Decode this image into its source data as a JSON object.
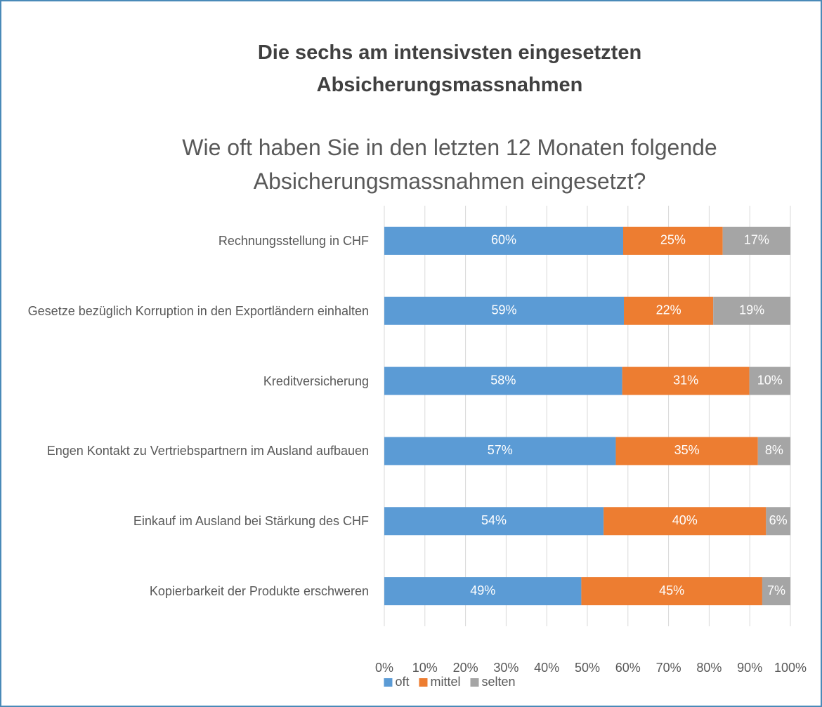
{
  "chart_data": {
    "type": "bar",
    "orientation": "horizontal",
    "stack": "percent",
    "title": "Die sechs am intensivsten eingesetzten Absicherungsmassnahmen",
    "subtitle": "Wie oft haben Sie in den letzten 12 Monaten folgende Absicherungsmassnahmen eingesetzt?",
    "categories": [
      "Rechnungsstellung in CHF",
      "Gesetze bezüglich Korruption in den Exportländern einhalten",
      "Kreditversicherung",
      "Engen Kontakt zu Vertriebspartnern im Ausland aufbauen",
      "Einkauf im Ausland bei Stärkung des CHF",
      "Kopierbarkeit der Produkte erschweren"
    ],
    "series": [
      {
        "name": "oft",
        "color": "#5b9bd5",
        "values": [
          60,
          59,
          58,
          57,
          54,
          49
        ],
        "value_labels": [
          "60%",
          "59%",
          "58%",
          "57%",
          "54%",
          "49%"
        ]
      },
      {
        "name": "mittel",
        "color": "#ed7d31",
        "values": [
          25,
          22,
          31,
          35,
          40,
          45
        ],
        "value_labels": [
          "25%",
          "22%",
          "31%",
          "35%",
          "40%",
          "45%"
        ]
      },
      {
        "name": "selten",
        "color": "#a5a5a5",
        "values": [
          17,
          19,
          10,
          8,
          6,
          7
        ],
        "value_labels": [
          "17%",
          "19%",
          "10%",
          "8%",
          "6%",
          "7%"
        ]
      }
    ],
    "xlim": [
      0,
      100
    ],
    "xticks": [
      {
        "value": 0,
        "label": "0%"
      },
      {
        "value": 10,
        "label": "10%"
      },
      {
        "value": 20,
        "label": "20%"
      },
      {
        "value": 30,
        "label": "30%"
      },
      {
        "value": 40,
        "label": "40%"
      },
      {
        "value": 50,
        "label": "50%"
      },
      {
        "value": 60,
        "label": "60%"
      },
      {
        "value": 70,
        "label": "70%"
      },
      {
        "value": 80,
        "label": "80%"
      },
      {
        "value": 90,
        "label": "90%"
      },
      {
        "value": 100,
        "label": "100%"
      }
    ],
    "grid": true,
    "legend": "bottom"
  }
}
